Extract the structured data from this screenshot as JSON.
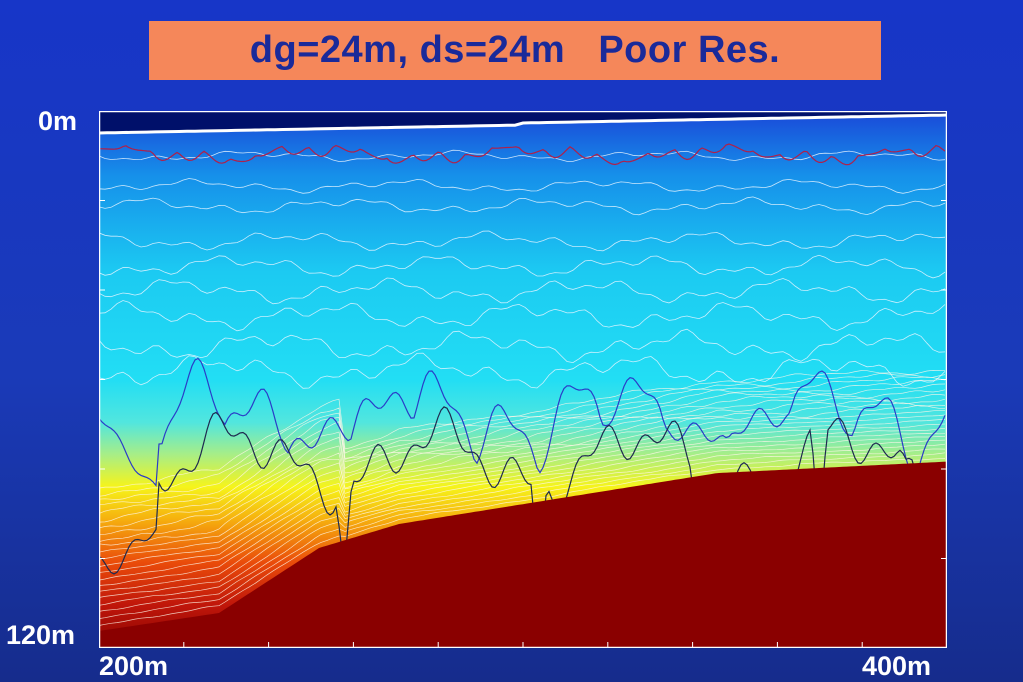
{
  "title": "dg=24m, ds=24m   Poor Res.",
  "chart_data": {
    "type": "heatmap",
    "title": "dg=24m, ds=24m   Poor Res.",
    "y_tick_labels": [
      "0m",
      "120m"
    ],
    "x_tick_labels": [
      "200m",
      "400m"
    ],
    "x_range": [
      200,
      400
    ],
    "y_range": [
      0,
      120
    ],
    "y_inverted": true,
    "colormap": [
      "#1a48d8",
      "#16a0ee",
      "#1ee0f4",
      "#66ead8",
      "#b8ee7c",
      "#f6f41a",
      "#f4b40e",
      "#e83c0a",
      "#8a0402"
    ],
    "background_region_color": "#8a0000",
    "grid": false
  }
}
